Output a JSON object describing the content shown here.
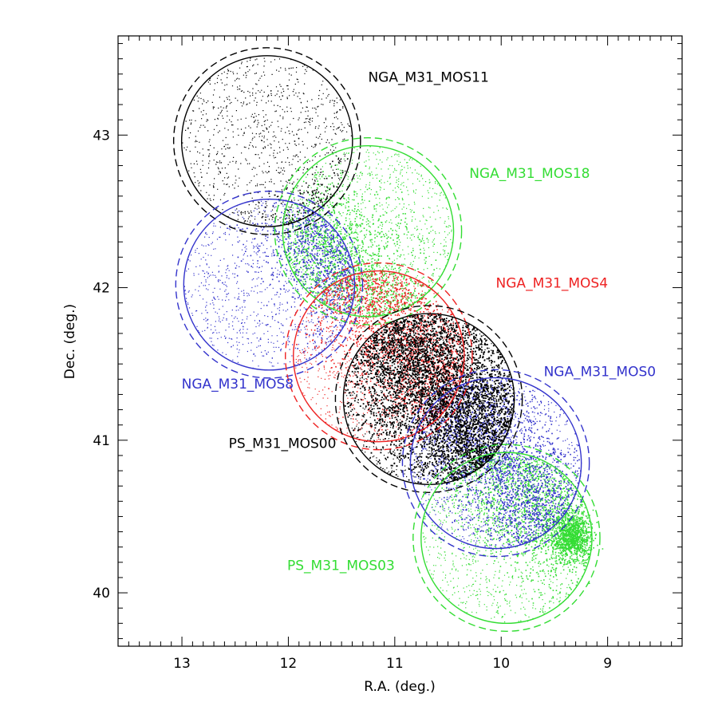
{
  "chart_data": {
    "type": "scatter",
    "xlabel": "R.A. (deg.)",
    "ylabel": "Dec. (deg.)",
    "xlim": [
      13.6,
      8.3
    ],
    "ylim": [
      39.65,
      43.65
    ],
    "x_ticks": [
      "13",
      "12",
      "11",
      "10",
      "9"
    ],
    "y_ticks": [
      "40",
      "41",
      "42",
      "43"
    ],
    "grid": false,
    "fields": [
      {
        "name": "NGA_M31_MOS11",
        "center": [
          12.2,
          42.96
        ],
        "color": "#000000",
        "label_pos": [
          11.25,
          43.35
        ],
        "label_anchor": "start"
      },
      {
        "name": "NGA_M31_MOS18",
        "center": [
          11.25,
          42.37
        ],
        "color": "#33dd33",
        "label_pos": [
          10.3,
          42.72
        ],
        "label_anchor": "start"
      },
      {
        "name": "NGA_M31_MOS8",
        "center": [
          12.18,
          42.02
        ],
        "color": "#3333cc",
        "label_pos": [
          11.95,
          41.34
        ],
        "label_anchor": "end"
      },
      {
        "name": "NGA_M31_MOS4",
        "center": [
          11.15,
          41.55
        ],
        "color": "#ee2222",
        "label_pos": [
          10.05,
          42.0
        ],
        "label_anchor": "start"
      },
      {
        "name": "PS_M31_MOS00",
        "center": [
          10.68,
          41.27
        ],
        "color": "#000000",
        "label_pos": [
          11.55,
          40.95
        ],
        "label_anchor": "end"
      },
      {
        "name": "NGA_M31_MOS0",
        "center": [
          10.05,
          40.85
        ],
        "color": "#3333cc",
        "label_pos": [
          9.6,
          41.42
        ],
        "label_anchor": "start"
      },
      {
        "name": "PS_M31_MOS03",
        "center": [
          9.95,
          40.36
        ],
        "color": "#33dd33",
        "label_pos": [
          11.0,
          40.15
        ],
        "label_anchor": "end"
      }
    ],
    "field_radius_deg": 0.56,
    "source_density": "dense stellar sources in each field; high concentration along the M31 disk ridge from (11.6, 42.3) to (9.4, 40.4)"
  }
}
